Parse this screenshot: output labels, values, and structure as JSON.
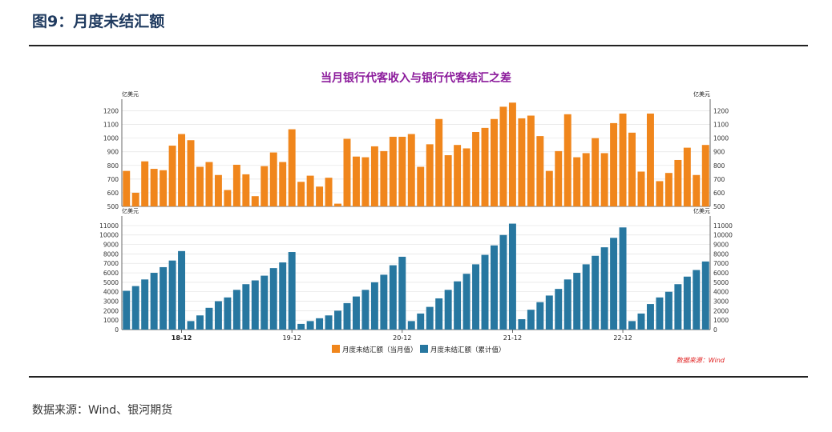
{
  "figure_title": "图9：月度未结汇额",
  "source_note": "数据来源：Wind、银河期货",
  "chart_data": [
    {
      "type": "bar",
      "title": "当月银行代客收入与银行代客结汇之差",
      "ylabel": "亿美元",
      "ylabel_right": "亿美元",
      "ylim": [
        500,
        1250
      ],
      "yticks": [
        500,
        600,
        700,
        800,
        900,
        1000,
        1100,
        1200
      ],
      "color": "#f0861c",
      "grid": true,
      "series": [
        {
          "name": "月度未结汇额（当月值）",
          "values": [
            760,
            600,
            830,
            775,
            765,
            945,
            1030,
            985,
            790,
            825,
            730,
            620,
            805,
            735,
            575,
            795,
            895,
            825,
            1065,
            680,
            725,
            645,
            710,
            520,
            995,
            865,
            860,
            940,
            905,
            1010,
            1010,
            1030,
            790,
            955,
            1140,
            875,
            950,
            925,
            1045,
            1075,
            1140,
            1230,
            1260,
            1145,
            1165,
            1015,
            760,
            905,
            1175,
            860,
            890,
            1000,
            890,
            1110,
            1180,
            1040,
            755,
            1180,
            685,
            745,
            840,
            930,
            730,
            950
          ]
        }
      ]
    },
    {
      "type": "bar",
      "ylabel": "亿美元",
      "ylabel_right": "亿美元",
      "ylim": [
        0,
        11500
      ],
      "yticks": [
        0,
        1000,
        2000,
        3000,
        4000,
        5000,
        6000,
        7000,
        8000,
        9000,
        10000,
        11000
      ],
      "color": "#2777a0",
      "grid": true,
      "categories_ticks": [
        "18-12",
        "19-12",
        "20-12",
        "21-12",
        "22-12"
      ],
      "series": [
        {
          "name": "月度未结汇额（累计值）",
          "values": [
            4100,
            4600,
            5300,
            6000,
            6600,
            7300,
            8300,
            900,
            1500,
            2300,
            3000,
            3400,
            4200,
            4800,
            5200,
            5700,
            6500,
            7100,
            8200,
            600,
            900,
            1200,
            1500,
            2000,
            2800,
            3500,
            4200,
            5000,
            5800,
            6800,
            7700,
            900,
            1700,
            2400,
            3300,
            4200,
            5100,
            5900,
            6900,
            7900,
            8900,
            10000,
            11200,
            1100,
            2100,
            2900,
            3600,
            4300,
            5300,
            6000,
            6900,
            7800,
            8700,
            9700,
            10800,
            900,
            1700,
            2700,
            3400,
            4000,
            4800,
            5600,
            6300,
            7200
          ]
        }
      ]
    }
  ],
  "legend_source": "数据来源：Wind"
}
